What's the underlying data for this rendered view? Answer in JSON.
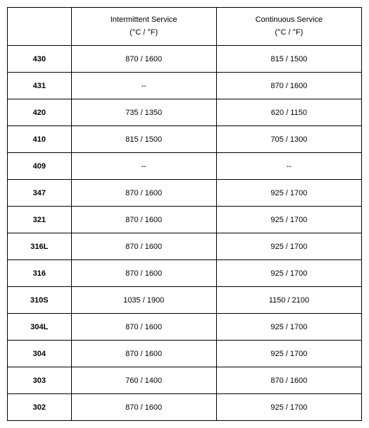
{
  "table": {
    "columns": [
      {
        "line1": "",
        "line2": ""
      },
      {
        "line1": "Intermittent Service",
        "line2": "(°C / °F)"
      },
      {
        "line1": "Continuous Service",
        "line2": "(°C / °F)"
      }
    ],
    "rows": [
      {
        "grade": "430",
        "intermittent": "870 / 1600",
        "continuous": "815 / 1500"
      },
      {
        "grade": "431",
        "intermittent": "--",
        "continuous": "870 / 1600"
      },
      {
        "grade": "420",
        "intermittent": "735 / 1350",
        "continuous": "620 / 1150"
      },
      {
        "grade": "410",
        "intermittent": "815 / 1500",
        "continuous": "705 / 1300"
      },
      {
        "grade": "409",
        "intermittent": "--",
        "continuous": "--"
      },
      {
        "grade": "347",
        "intermittent": "870 / 1600",
        "continuous": "925 / 1700"
      },
      {
        "grade": "321",
        "intermittent": "870 / 1600",
        "continuous": "925 / 1700"
      },
      {
        "grade": "316L",
        "intermittent": "870 / 1600",
        "continuous": "925 / 1700"
      },
      {
        "grade": "316",
        "intermittent": "870 / 1600",
        "continuous": "925 / 1700"
      },
      {
        "grade": "310S",
        "intermittent": "1035 / 1900",
        "continuous": "1150 / 2100"
      },
      {
        "grade": "304L",
        "intermittent": "870 / 1600",
        "continuous": "925 / 1700"
      },
      {
        "grade": "304",
        "intermittent": "870 / 1600",
        "continuous": "925 / 1700"
      },
      {
        "grade": "303",
        "intermittent": "760 / 1400",
        "continuous": "870 / 1600"
      },
      {
        "grade": "302",
        "intermittent": "870 / 1600",
        "continuous": "925 / 1700"
      }
    ]
  }
}
